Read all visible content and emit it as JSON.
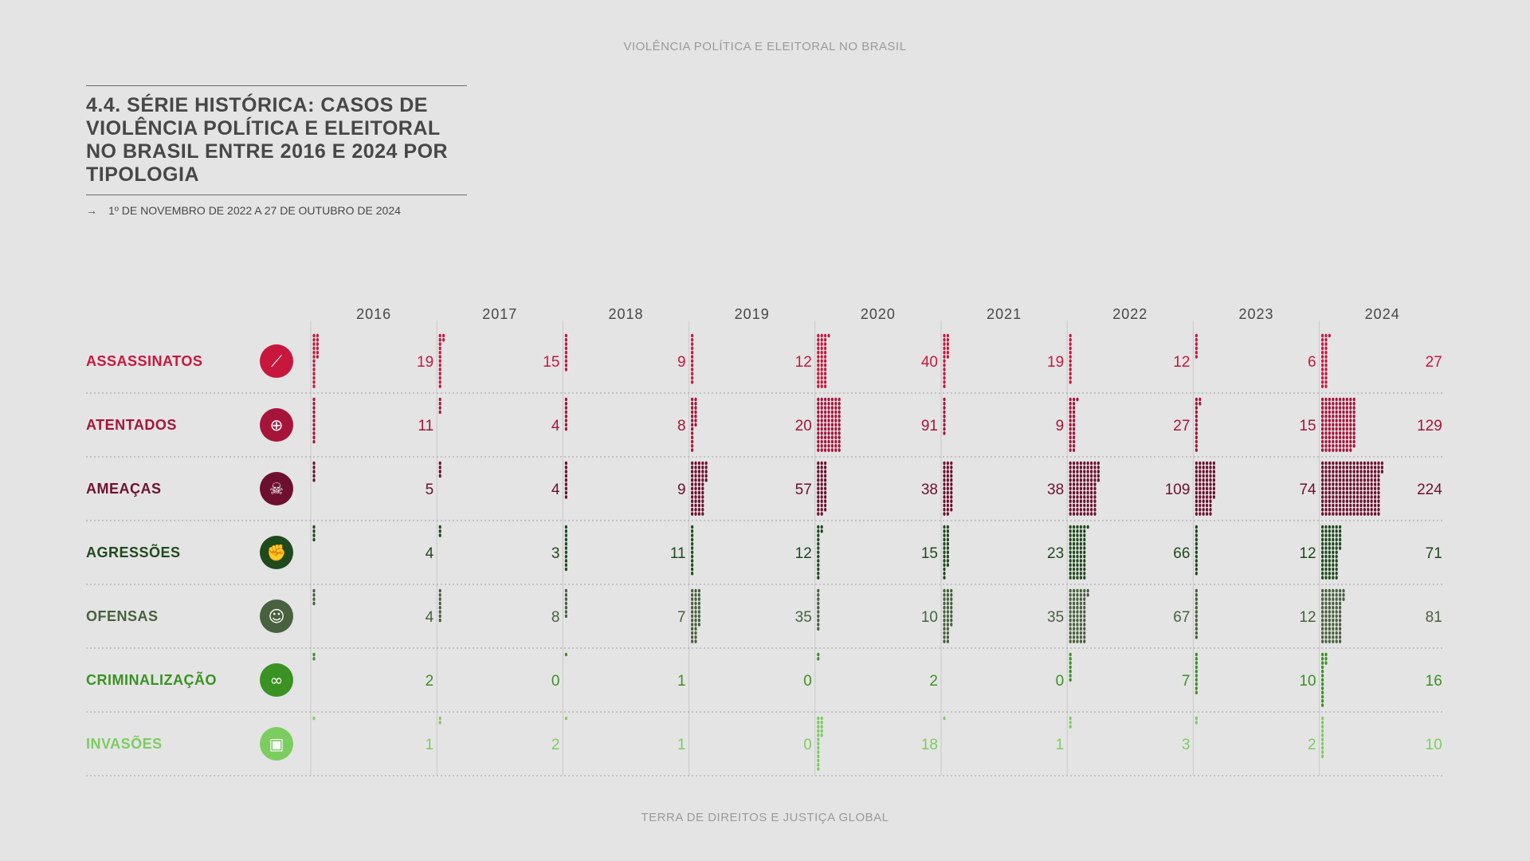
{
  "header": {
    "title": "VIOLÊNCIA POLÍTICA E ELEITORAL NO BRASIL"
  },
  "title": "4.4. SÉRIE HISTÓRICA: CASOS DE VIOLÊNCIA POLÍTICA E ELEITORAL NO BRASIL ENTRE 2016 E 2024 POR TIPOLOGIA",
  "subtitle": {
    "arrow": "→",
    "text": "1º DE NOVEMBRO DE 2022 A 27 DE OUTUBRO DE 2024"
  },
  "footer": "TERRA DE DIREITOS E JUSTIÇA GLOBAL",
  "chart_data": {
    "type": "table",
    "encoding": "dot-matrix",
    "categories": [
      "2016",
      "2017",
      "2018",
      "2019",
      "2020",
      "2021",
      "2022",
      "2023",
      "2024"
    ],
    "series": [
      {
        "name": "ASSASSINATOS",
        "color": "#c8173d",
        "icon": "knife-icon",
        "values": [
          19,
          15,
          9,
          12,
          40,
          19,
          12,
          6,
          27
        ]
      },
      {
        "name": "ATENTADOS",
        "color": "#a7143a",
        "icon": "target-icon",
        "values": [
          11,
          4,
          8,
          20,
          91,
          9,
          27,
          15,
          129
        ]
      },
      {
        "name": "AMEAÇAS",
        "color": "#6d1030",
        "icon": "skull-icon",
        "values": [
          5,
          4,
          9,
          57,
          38,
          38,
          109,
          74,
          224
        ]
      },
      {
        "name": "AGRESSÕES",
        "color": "#1f4a1c",
        "icon": "fist-icon",
        "values": [
          4,
          3,
          11,
          12,
          15,
          23,
          66,
          12,
          71
        ]
      },
      {
        "name": "OFENSAS",
        "color": "#48613e",
        "icon": "shouting-face-icon",
        "values": [
          4,
          8,
          7,
          35,
          10,
          35,
          67,
          12,
          81
        ]
      },
      {
        "name": "CRIMINALIZAÇÃO",
        "color": "#3a9222",
        "icon": "handcuffs-icon",
        "values": [
          2,
          0,
          1,
          0,
          2,
          0,
          7,
          10,
          16
        ]
      },
      {
        "name": "INVASÕES",
        "color": "#7ccd5f",
        "icon": "broken-window-icon",
        "values": [
          1,
          2,
          1,
          0,
          18,
          1,
          3,
          2,
          10
        ]
      }
    ]
  }
}
